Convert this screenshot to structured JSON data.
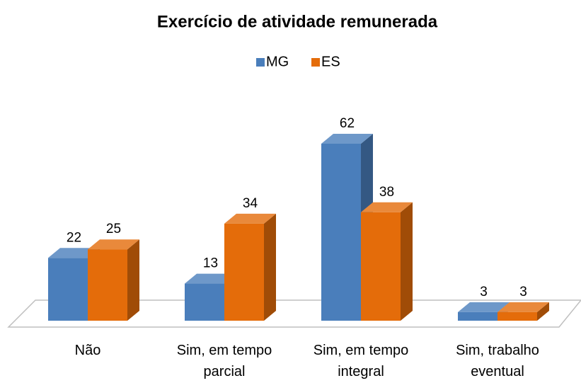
{
  "chart_data": {
    "type": "bar3d",
    "title": "Exercício de atividade remunerada",
    "categories": [
      "Não",
      "Sim, em tempo parcial",
      "Sim, em tempo integral",
      "Sim, trabalho eventual"
    ],
    "series": [
      {
        "name": "MG",
        "color": "#4a7ebb",
        "values": [
          22,
          13,
          62,
          3
        ]
      },
      {
        "name": "ES",
        "color": "#e46c0a",
        "values": [
          25,
          34,
          38,
          3
        ]
      }
    ],
    "legend": "top"
  }
}
